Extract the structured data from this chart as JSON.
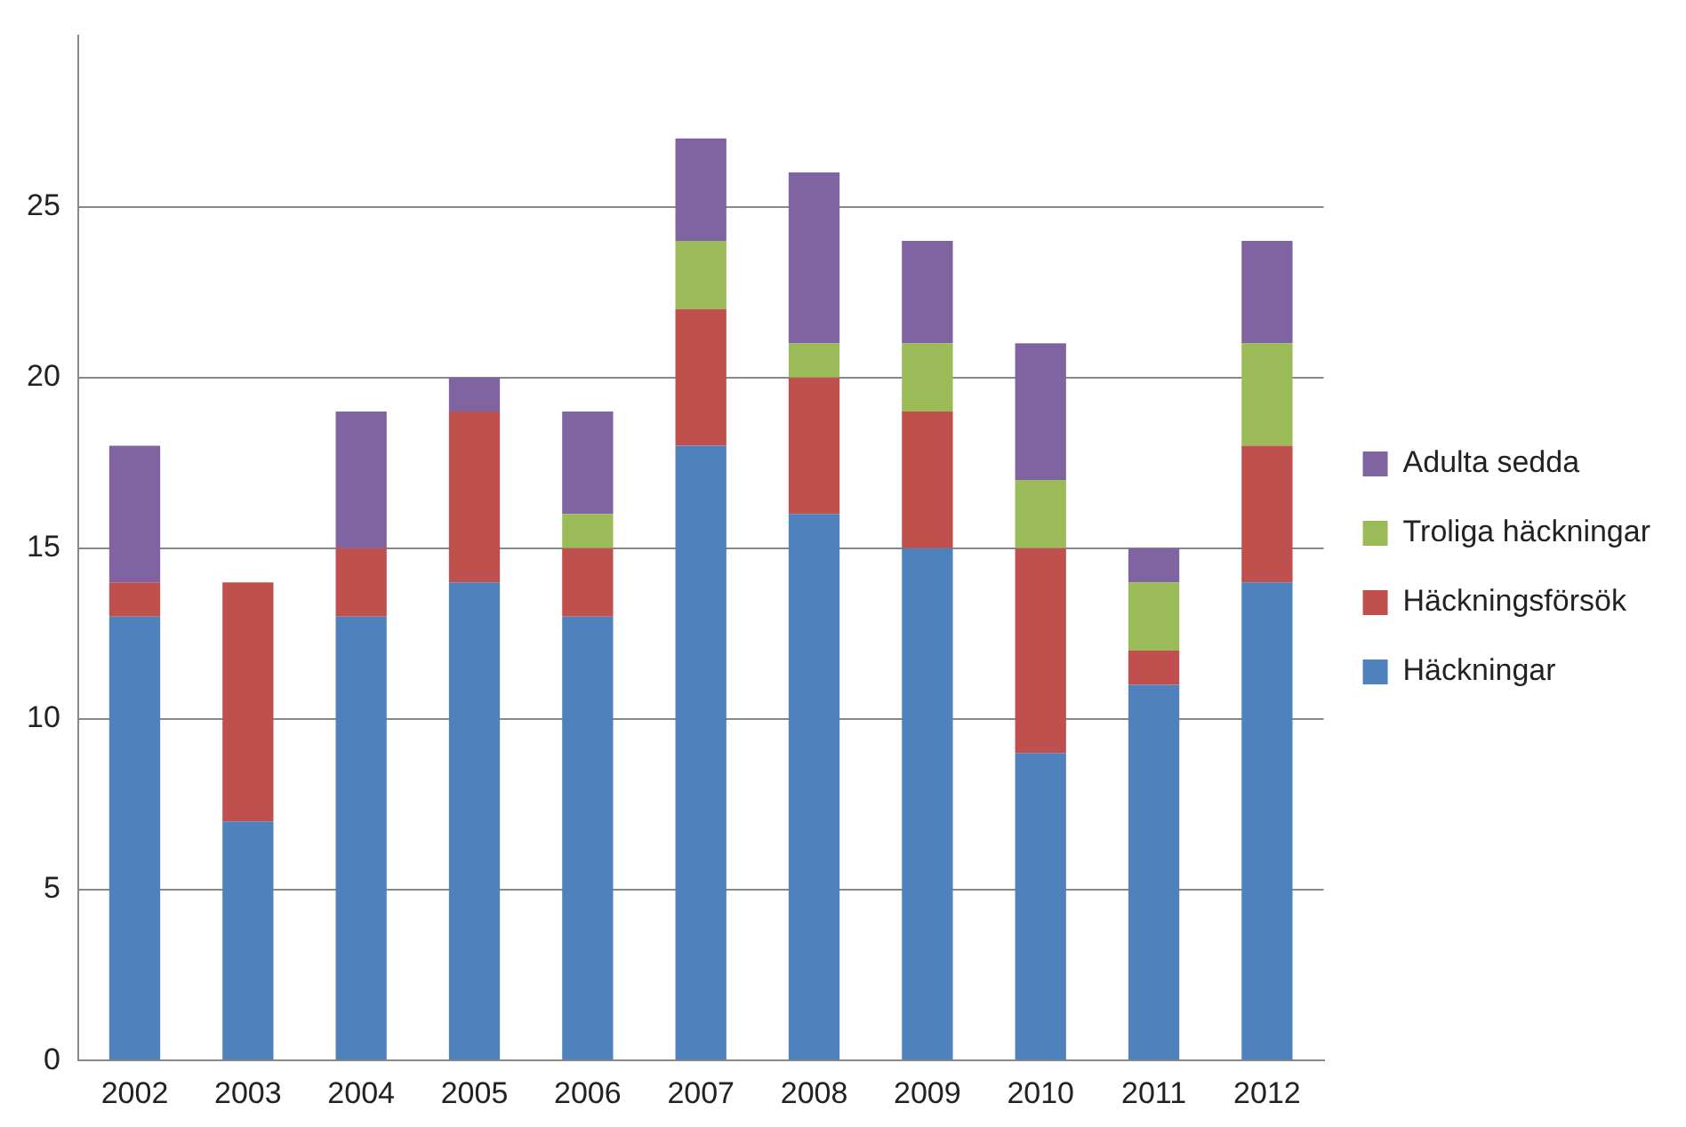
{
  "chart_data": {
    "type": "bar",
    "stacked": true,
    "categories": [
      "2002",
      "2003",
      "2004",
      "2005",
      "2006",
      "2007",
      "2008",
      "2009",
      "2010",
      "2011",
      "2012"
    ],
    "series": [
      {
        "name": "Häckningar",
        "color": "#4f81bd",
        "values": [
          13,
          7,
          13,
          14,
          13,
          18,
          16,
          15,
          9,
          11,
          14
        ]
      },
      {
        "name": "Häckningsförsök",
        "color": "#c0504d",
        "values": [
          1,
          7,
          2,
          5,
          2,
          4,
          4,
          4,
          6,
          1,
          4
        ]
      },
      {
        "name": "Troliga häckningar",
        "color": "#9bbb59",
        "values": [
          0,
          0,
          0,
          0,
          1,
          2,
          1,
          2,
          2,
          2,
          3
        ]
      },
      {
        "name": "Adulta sedda",
        "color": "#8064a2",
        "values": [
          4,
          0,
          4,
          1,
          3,
          3,
          5,
          3,
          4,
          1,
          3
        ]
      }
    ],
    "ylim": [
      0,
      30
    ],
    "yticks": [
      0,
      5,
      10,
      15,
      20,
      25
    ],
    "grid": "y",
    "legend": "right"
  }
}
